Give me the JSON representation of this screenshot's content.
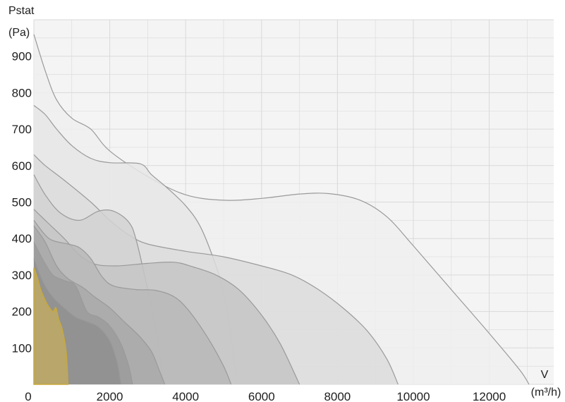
{
  "chart_data": {
    "type": "area",
    "y_axis_title": "Pstat",
    "y_axis_unit": "(Pa)",
    "x_axis_title": "V",
    "x_axis_unit": "(m³/h)",
    "xlim": [
      0,
      13700
    ],
    "ylim": [
      0,
      1000
    ],
    "x_ticks": [
      "0",
      "2000",
      "4000",
      "6000",
      "8000",
      "10000",
      "12000"
    ],
    "x_tick_values": [
      0,
      2000,
      4000,
      6000,
      8000,
      10000,
      12000
    ],
    "y_ticks": [
      "100",
      "200",
      "300",
      "400",
      "500",
      "600",
      "700",
      "800",
      "900"
    ],
    "y_tick_values": [
      100,
      200,
      300,
      400,
      500,
      600,
      700,
      800,
      900
    ],
    "grid": true,
    "colors": {
      "plot_background": "#f4f4f4",
      "grid": "#d9d9d9",
      "curve_line": "#9a9a9a",
      "highlight_fill": "#b8a66a",
      "highlight_line": "#c9a93a"
    },
    "series": [
      {
        "fill": "#eeeeee",
        "points": [
          [
            0,
            960
          ],
          [
            300,
            860
          ],
          [
            600,
            780
          ],
          [
            1000,
            730
          ],
          [
            1500,
            700
          ],
          [
            2000,
            640
          ],
          [
            3000,
            570
          ],
          [
            4000,
            520
          ],
          [
            5000,
            505
          ],
          [
            6000,
            510
          ],
          [
            7000,
            522
          ],
          [
            7800,
            523
          ],
          [
            8600,
            505
          ],
          [
            9300,
            460
          ],
          [
            10000,
            380
          ],
          [
            11000,
            260
          ],
          [
            12000,
            140
          ],
          [
            12800,
            40
          ],
          [
            13050,
            0
          ]
        ]
      },
      {
        "fill": "#e6e6e6",
        "points": [
          [
            0,
            765
          ],
          [
            300,
            740
          ],
          [
            600,
            700
          ],
          [
            1000,
            655
          ],
          [
            1500,
            620
          ],
          [
            2000,
            608
          ],
          [
            2800,
            605
          ],
          [
            3100,
            575
          ],
          [
            3500,
            540
          ],
          [
            4000,
            490
          ],
          [
            4400,
            430
          ],
          [
            4800,
            325
          ],
          [
            5000,
            250
          ],
          [
            5200,
            130
          ],
          [
            5350,
            0
          ]
        ]
      },
      {
        "fill": "#dcdcdc",
        "points": [
          [
            0,
            630
          ],
          [
            300,
            600
          ],
          [
            800,
            560
          ],
          [
            1500,
            500
          ],
          [
            2000,
            450
          ],
          [
            2500,
            410
          ],
          [
            3000,
            385
          ],
          [
            4000,
            365
          ],
          [
            5000,
            350
          ],
          [
            6000,
            325
          ],
          [
            6800,
            300
          ],
          [
            7500,
            260
          ],
          [
            8200,
            205
          ],
          [
            8800,
            145
          ],
          [
            9300,
            70
          ],
          [
            9600,
            0
          ]
        ]
      },
      {
        "fill": "#d2d2d2",
        "points": [
          [
            0,
            575
          ],
          [
            300,
            520
          ],
          [
            700,
            470
          ],
          [
            1200,
            450
          ],
          [
            1700,
            475
          ],
          [
            2100,
            475
          ],
          [
            2500,
            445
          ],
          [
            2700,
            395
          ],
          [
            3000,
            260
          ],
          [
            3200,
            160
          ],
          [
            3300,
            100
          ],
          [
            3400,
            0
          ]
        ]
      },
      {
        "fill": "#c6c6c6",
        "points": [
          [
            0,
            480
          ],
          [
            400,
            440
          ],
          [
            800,
            400
          ],
          [
            1200,
            355
          ],
          [
            1600,
            330
          ],
          [
            2200,
            325
          ],
          [
            3000,
            332
          ],
          [
            3700,
            335
          ],
          [
            4200,
            322
          ],
          [
            4800,
            300
          ],
          [
            5400,
            260
          ],
          [
            6000,
            190
          ],
          [
            6500,
            110
          ],
          [
            7000,
            0
          ]
        ]
      },
      {
        "fill": "#b8b8b8",
        "points": [
          [
            0,
            450
          ],
          [
            400,
            400
          ],
          [
            900,
            385
          ],
          [
            1200,
            375
          ],
          [
            1500,
            345
          ],
          [
            1800,
            295
          ],
          [
            2100,
            270
          ],
          [
            2700,
            260
          ],
          [
            3200,
            258
          ],
          [
            3700,
            240
          ],
          [
            4100,
            200
          ],
          [
            4600,
            125
          ],
          [
            5000,
            50
          ],
          [
            5200,
            0
          ]
        ]
      },
      {
        "fill": "#a9a9a9",
        "points": [
          [
            0,
            435
          ],
          [
            300,
            390
          ],
          [
            600,
            325
          ],
          [
            900,
            290
          ],
          [
            1300,
            265
          ],
          [
            1600,
            240
          ],
          [
            2000,
            210
          ],
          [
            2400,
            170
          ],
          [
            2800,
            130
          ],
          [
            3100,
            90
          ],
          [
            3300,
            40
          ],
          [
            3450,
            0
          ]
        ]
      },
      {
        "fill": "#9b9b9b",
        "points": [
          [
            0,
            390
          ],
          [
            250,
            340
          ],
          [
            500,
            300
          ],
          [
            800,
            285
          ],
          [
            1100,
            270
          ],
          [
            1400,
            200
          ],
          [
            1700,
            185
          ],
          [
            2000,
            160
          ],
          [
            2300,
            110
          ],
          [
            2500,
            50
          ],
          [
            2600,
            0
          ]
        ]
      },
      {
        "fill": "#8f8f8f",
        "points": [
          [
            0,
            345
          ],
          [
            250,
            280
          ],
          [
            500,
            240
          ],
          [
            800,
            210
          ],
          [
            1100,
            185
          ],
          [
            1400,
            172
          ],
          [
            1700,
            158
          ],
          [
            2000,
            120
          ],
          [
            2200,
            60
          ],
          [
            2300,
            0
          ]
        ]
      }
    ],
    "highlight_points": [
      [
        0,
        320
      ],
      [
        100,
        290
      ],
      [
        180,
        260
      ],
      [
        350,
        220
      ],
      [
        500,
        200
      ],
      [
        580,
        210
      ],
      [
        650,
        180
      ],
      [
        750,
        150
      ],
      [
        850,
        90
      ],
      [
        900,
        0
      ]
    ]
  }
}
